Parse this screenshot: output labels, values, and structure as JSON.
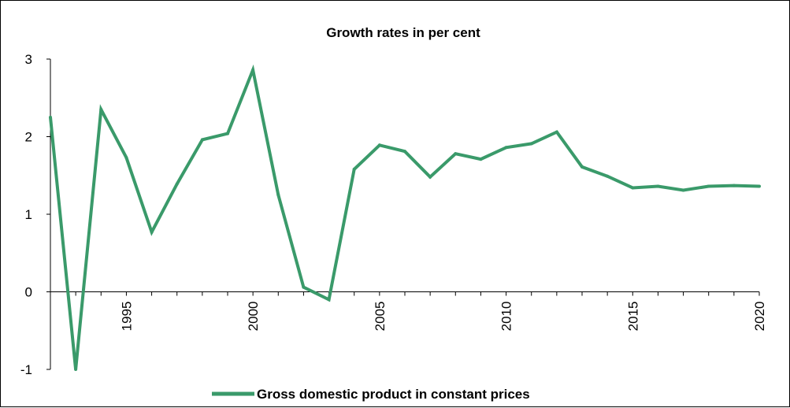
{
  "chart_data": {
    "type": "line",
    "title": "Growth rates in per cent",
    "xlabel": "",
    "ylabel": "",
    "x": [
      1992,
      1993,
      1994,
      1995,
      1996,
      1997,
      1998,
      1999,
      2000,
      2001,
      2002,
      2003,
      2004,
      2005,
      2006,
      2007,
      2008,
      2009,
      2010,
      2011,
      2012,
      2013,
      2014,
      2015,
      2016,
      2017,
      2018,
      2019,
      2020
    ],
    "series": [
      {
        "name": "Gross domestic product in constant prices",
        "color": "#3a9a6a",
        "values": [
          2.25,
          -1.0,
          2.35,
          1.73,
          0.77,
          1.39,
          1.96,
          2.04,
          2.86,
          1.25,
          0.06,
          -0.1,
          1.58,
          1.89,
          1.81,
          1.48,
          1.78,
          1.71,
          1.86,
          1.91,
          2.06,
          1.61,
          1.49,
          1.34,
          1.36,
          1.31,
          1.36,
          1.37,
          1.36
        ]
      }
    ],
    "ylim": [
      -1,
      3
    ],
    "yticks": [
      "-1",
      "0",
      "1",
      "2",
      "3"
    ],
    "xticks": [
      "1995",
      "2000",
      "2005",
      "2010",
      "2015",
      "2020"
    ],
    "grid": false,
    "legend": "bottom"
  }
}
